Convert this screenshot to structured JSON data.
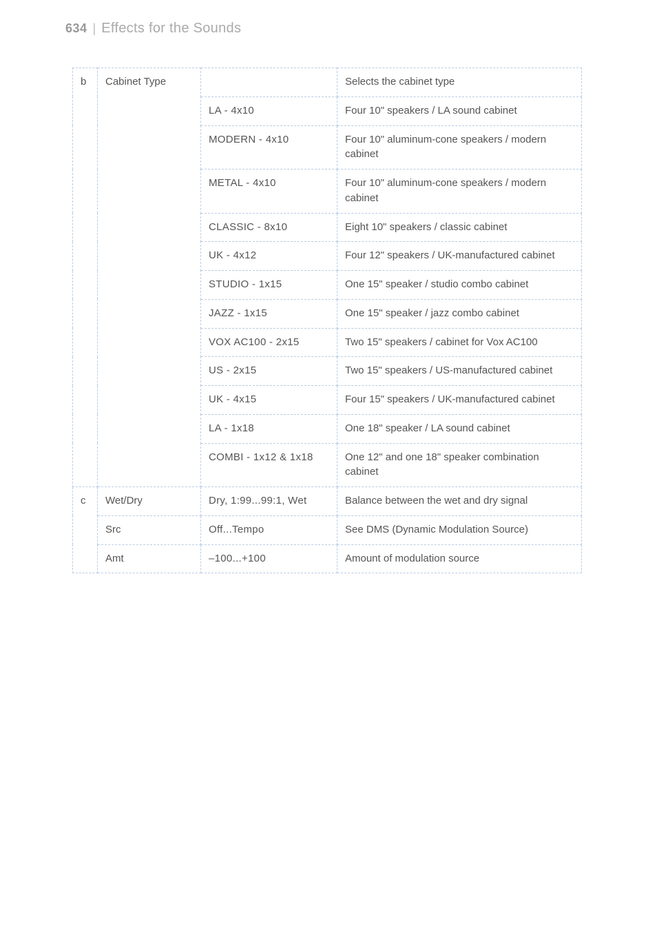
{
  "header": {
    "page_number": "634",
    "divider": "|",
    "title": "Effects for the Sounds"
  },
  "colors": {
    "border": "#b8cce4",
    "text": "#555555",
    "page_num": "#999999",
    "page_title": "#aaaaaa",
    "bg": "#ffffff"
  },
  "table": {
    "rows": [
      {
        "letter": "b",
        "param": "Cabinet Type",
        "value": "",
        "desc": "Selects the cabinet type",
        "letter_rowspan": 13,
        "param_rowspan": 13
      },
      {
        "value": "LA - 4x10",
        "desc": "Four 10\" speakers / LA sound cabinet"
      },
      {
        "value": "MODERN - 4x10",
        "desc": "Four 10\" aluminum-cone speakers / modern cabinet"
      },
      {
        "value": "METAL - 4x10",
        "desc": "Four 10\" aluminum-cone speakers / modern cabinet"
      },
      {
        "value": "CLASSIC - 8x10",
        "desc": "Eight 10\" speakers / classic cabinet"
      },
      {
        "value": "UK - 4x12",
        "desc": "Four 12\" speakers / UK-manufactured cabinet"
      },
      {
        "value": "STUDIO - 1x15",
        "desc": "One 15\" speaker / studio combo cabinet"
      },
      {
        "value": "JAZZ - 1x15",
        "desc": "One 15\" speaker / jazz combo cabinet"
      },
      {
        "value": "VOX AC100 - 2x15",
        "desc": "Two 15\" speakers / cabinet for Vox AC100"
      },
      {
        "value": "US - 2x15",
        "desc": "Two 15\" speakers / US-manufactured cabinet"
      },
      {
        "value": "UK - 4x15",
        "desc": "Four 15\" speakers / UK-manufactured cabinet"
      },
      {
        "value": "LA - 1x18",
        "desc": "One 18\" speaker /\nLA sound cabinet"
      },
      {
        "value": "COMBI - 1x12 & 1x18",
        "desc": "One 12\" and one 18\" speaker combination cabinet"
      },
      {
        "letter": "c",
        "param": "Wet/Dry",
        "value": "Dry, 1:99...99:1, Wet",
        "desc": "Balance between the wet and dry signal",
        "letter_rowspan": 3
      },
      {
        "param": "Src",
        "value": "Off...Tempo",
        "desc": "See DMS (Dynamic Modulation Source)"
      },
      {
        "param": "Amt",
        "value": "–100...+100",
        "desc": "Amount of modulation source"
      }
    ]
  }
}
